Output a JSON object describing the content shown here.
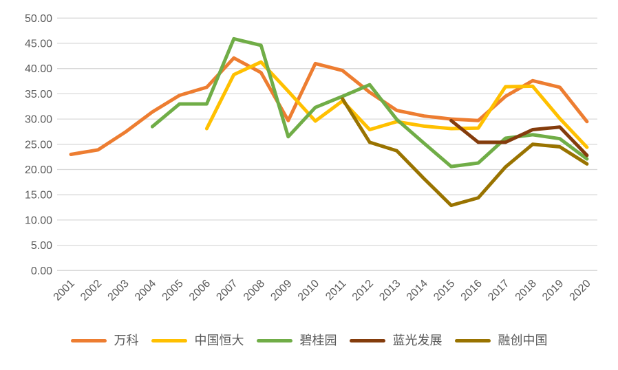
{
  "chart_data": {
    "type": "line",
    "x": [
      2001,
      2002,
      2003,
      2004,
      2005,
      2006,
      2007,
      2008,
      2009,
      2010,
      2011,
      2012,
      2013,
      2014,
      2015,
      2016,
      2017,
      2018,
      2019,
      2020
    ],
    "series": [
      {
        "name": "万科",
        "color": "#ED7D31",
        "start_year": 2001,
        "values": [
          23.0,
          23.9,
          27.4,
          31.4,
          34.7,
          36.3,
          42.1,
          39.2,
          29.7,
          41.0,
          39.6,
          35.3,
          31.7,
          30.6,
          30.0,
          29.7,
          34.5,
          37.6,
          36.3,
          29.5
        ]
      },
      {
        "name": "中国恒大",
        "color": "#FFC000",
        "start_year": 2006,
        "values": [
          28.1,
          38.8,
          41.3,
          35.5,
          29.6,
          33.6,
          27.9,
          29.5,
          28.6,
          28.1,
          28.2,
          36.4,
          36.5,
          30.1,
          24.4
        ]
      },
      {
        "name": "碧桂园",
        "color": "#70AD47",
        "start_year": 2004,
        "values": [
          28.5,
          33.0,
          33.0,
          45.9,
          44.6,
          26.5,
          32.3,
          34.5,
          36.8,
          29.9,
          25.2,
          20.6,
          21.3,
          26.2,
          26.9,
          26.1,
          22.1
        ]
      },
      {
        "name": "蓝光发展",
        "color": "#843C0C",
        "start_year": 2015,
        "values": [
          29.7,
          25.4,
          25.4,
          27.9,
          28.4,
          22.8
        ]
      },
      {
        "name": "融创中国",
        "color": "#997300",
        "start_year": 2011,
        "values": [
          34.0,
          25.4,
          23.7,
          18.2,
          12.9,
          14.4,
          20.5,
          25.0,
          24.5,
          21.1
        ]
      }
    ],
    "title": "",
    "xlabel": "",
    "ylabel": "",
    "ylim": [
      0,
      50
    ],
    "ytick_step": 5,
    "ytick_labels": [
      "0.00",
      "5.00",
      "10.00",
      "15.00",
      "20.00",
      "25.00",
      "30.00",
      "35.00",
      "40.00",
      "45.00",
      "50.00"
    ],
    "grid": true,
    "legend_position": "bottom",
    "axis_label_color": "#595959",
    "gridline_color": "#D9D9D9",
    "background_color": "#FFFFFF"
  }
}
